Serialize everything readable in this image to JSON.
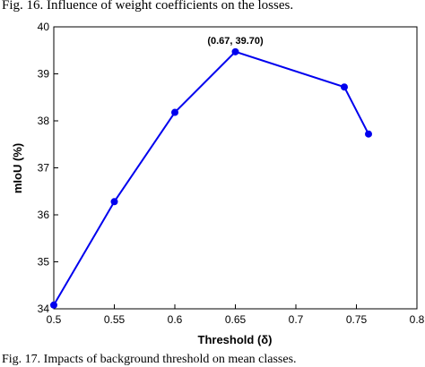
{
  "captions": {
    "top": "Fig. 16.    Influence of weight coefficients on the losses.",
    "bottom": "Fig. 17.    Impacts of background threshold on mean classes."
  },
  "chart_data": {
    "type": "line",
    "x": [
      0.5,
      0.55,
      0.6,
      0.65,
      0.74,
      0.76
    ],
    "series": [
      {
        "values": [
          34.08,
          36.28,
          38.18,
          39.47,
          38.72,
          37.72
        ]
      }
    ],
    "xlabel": "Threshold (δ)",
    "ylabel": "mIoU (%)",
    "xlim": [
      0.5,
      0.8
    ],
    "ylim": [
      34,
      40
    ],
    "xticks": [
      "0.5",
      "0.55",
      "0.6",
      "0.65",
      "0.7",
      "0.75",
      "0.8"
    ],
    "yticks": [
      "34",
      "35",
      "36",
      "37",
      "38",
      "39",
      "40"
    ],
    "annotation": {
      "text": "(0.67, 39.70)",
      "x": 0.65,
      "y": 39.47
    },
    "grid": false,
    "line_color": "#0000ee",
    "marker_color": "#0000ee"
  }
}
